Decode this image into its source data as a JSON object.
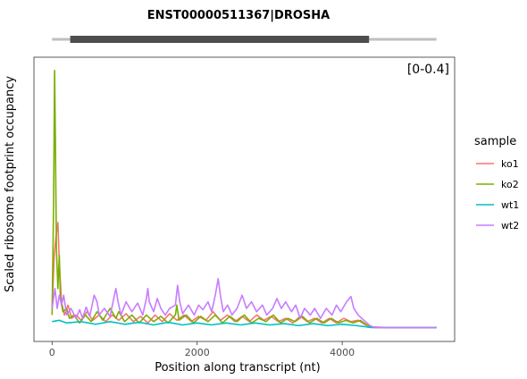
{
  "chart_data": {
    "type": "line",
    "title": "ENST00000511367|DROSHA",
    "xlabel": "Position along transcript (nt)",
    "ylabel": "Scaled ribosome footprint occupancy",
    "range_label": "[0-0.4]",
    "xlim": [
      -250,
      5550
    ],
    "ylim": [
      -0.02,
      0.41
    ],
    "x_ticks": [
      0,
      2000,
      4000
    ],
    "x_tick_labels": [
      "0",
      "2000",
      "4000"
    ],
    "grid": false,
    "legend_position": "right",
    "legend_title": "sample",
    "transcript": {
      "length": 5300,
      "cds_start": 250,
      "cds_end": 4370,
      "utr_color": "#bfbfbf",
      "cds_color": "#4d4d4d"
    },
    "series": [
      {
        "name": "ko1",
        "color": "#f8766d",
        "points": [
          [
            0,
            0.03
          ],
          [
            30,
            0.11
          ],
          [
            55,
            0.14
          ],
          [
            80,
            0.16
          ],
          [
            100,
            0.1
          ],
          [
            130,
            0.04
          ],
          [
            170,
            0.02
          ],
          [
            220,
            0.035
          ],
          [
            270,
            0.015
          ],
          [
            330,
            0.02
          ],
          [
            400,
            0.012
          ],
          [
            480,
            0.025
          ],
          [
            560,
            0.012
          ],
          [
            650,
            0.02
          ],
          [
            740,
            0.01
          ],
          [
            830,
            0.02
          ],
          [
            920,
            0.012
          ],
          [
            1020,
            0.022
          ],
          [
            1120,
            0.01
          ],
          [
            1220,
            0.018
          ],
          [
            1320,
            0.008
          ],
          [
            1420,
            0.02
          ],
          [
            1520,
            0.01
          ],
          [
            1620,
            0.022
          ],
          [
            1720,
            0.012
          ],
          [
            1820,
            0.02
          ],
          [
            1920,
            0.01
          ],
          [
            2020,
            0.018
          ],
          [
            2120,
            0.012
          ],
          [
            2220,
            0.025
          ],
          [
            2320,
            0.012
          ],
          [
            2420,
            0.02
          ],
          [
            2520,
            0.01
          ],
          [
            2620,
            0.018
          ],
          [
            2720,
            0.01
          ],
          [
            2820,
            0.02
          ],
          [
            2920,
            0.012
          ],
          [
            3020,
            0.018
          ],
          [
            3120,
            0.01
          ],
          [
            3220,
            0.015
          ],
          [
            3320,
            0.008
          ],
          [
            3420,
            0.018
          ],
          [
            3520,
            0.01
          ],
          [
            3620,
            0.015
          ],
          [
            3720,
            0.008
          ],
          [
            3820,
            0.015
          ],
          [
            3920,
            0.008
          ],
          [
            4020,
            0.015
          ],
          [
            4120,
            0.01
          ],
          [
            4220,
            0.012
          ],
          [
            4320,
            0.005
          ],
          [
            4420,
            0.002
          ],
          [
            4600,
            0.001
          ],
          [
            5300,
            0.001
          ]
        ]
      },
      {
        "name": "ko2",
        "color": "#7cae00",
        "points": [
          [
            0,
            0.02
          ],
          [
            20,
            0.18
          ],
          [
            35,
            0.39
          ],
          [
            45,
            0.29
          ],
          [
            60,
            0.12
          ],
          [
            80,
            0.06
          ],
          [
            100,
            0.11
          ],
          [
            115,
            0.045
          ],
          [
            150,
            0.025
          ],
          [
            200,
            0.03
          ],
          [
            240,
            0.015
          ],
          [
            300,
            0.02
          ],
          [
            380,
            0.008
          ],
          [
            460,
            0.02
          ],
          [
            540,
            0.01
          ],
          [
            620,
            0.025
          ],
          [
            700,
            0.012
          ],
          [
            800,
            0.03
          ],
          [
            880,
            0.015
          ],
          [
            920,
            0.025
          ],
          [
            1000,
            0.01
          ],
          [
            1100,
            0.02
          ],
          [
            1200,
            0.008
          ],
          [
            1300,
            0.02
          ],
          [
            1400,
            0.01
          ],
          [
            1500,
            0.018
          ],
          [
            1600,
            0.008
          ],
          [
            1700,
            0.02
          ],
          [
            1720,
            0.035
          ],
          [
            1750,
            0.012
          ],
          [
            1850,
            0.02
          ],
          [
            1950,
            0.008
          ],
          [
            2050,
            0.018
          ],
          [
            2150,
            0.01
          ],
          [
            2250,
            0.02
          ],
          [
            2350,
            0.008
          ],
          [
            2450,
            0.018
          ],
          [
            2550,
            0.01
          ],
          [
            2650,
            0.02
          ],
          [
            2750,
            0.008
          ],
          [
            2850,
            0.015
          ],
          [
            2950,
            0.01
          ],
          [
            3050,
            0.02
          ],
          [
            3150,
            0.008
          ],
          [
            3250,
            0.015
          ],
          [
            3350,
            0.01
          ],
          [
            3450,
            0.018
          ],
          [
            3550,
            0.008
          ],
          [
            3650,
            0.015
          ],
          [
            3750,
            0.008
          ],
          [
            3850,
            0.015
          ],
          [
            3950,
            0.008
          ],
          [
            4050,
            0.012
          ],
          [
            4150,
            0.008
          ],
          [
            4250,
            0.012
          ],
          [
            4350,
            0.004
          ],
          [
            4450,
            0.001
          ],
          [
            5300,
            0.001
          ]
        ]
      },
      {
        "name": "wt1",
        "color": "#00bfc4",
        "points": [
          [
            0,
            0.01
          ],
          [
            100,
            0.012
          ],
          [
            200,
            0.008
          ],
          [
            400,
            0.01
          ],
          [
            600,
            0.006
          ],
          [
            800,
            0.01
          ],
          [
            1000,
            0.006
          ],
          [
            1200,
            0.009
          ],
          [
            1400,
            0.005
          ],
          [
            1600,
            0.009
          ],
          [
            1800,
            0.005
          ],
          [
            2000,
            0.008
          ],
          [
            2200,
            0.005
          ],
          [
            2400,
            0.008
          ],
          [
            2600,
            0.005
          ],
          [
            2800,
            0.008
          ],
          [
            3000,
            0.005
          ],
          [
            3200,
            0.007
          ],
          [
            3400,
            0.004
          ],
          [
            3600,
            0.007
          ],
          [
            3800,
            0.004
          ],
          [
            4000,
            0.006
          ],
          [
            4200,
            0.004
          ],
          [
            4400,
            0.001
          ],
          [
            5300,
            0.001
          ]
        ]
      },
      {
        "name": "wt2",
        "color": "#c77cff",
        "points": [
          [
            0,
            0.03
          ],
          [
            40,
            0.06
          ],
          [
            70,
            0.03
          ],
          [
            100,
            0.05
          ],
          [
            130,
            0.035
          ],
          [
            160,
            0.05
          ],
          [
            200,
            0.02
          ],
          [
            260,
            0.03
          ],
          [
            330,
            0.015
          ],
          [
            380,
            0.028
          ],
          [
            420,
            0.015
          ],
          [
            470,
            0.032
          ],
          [
            520,
            0.018
          ],
          [
            580,
            0.05
          ],
          [
            620,
            0.04
          ],
          [
            650,
            0.02
          ],
          [
            720,
            0.03
          ],
          [
            800,
            0.018
          ],
          [
            850,
            0.045
          ],
          [
            880,
            0.06
          ],
          [
            910,
            0.04
          ],
          [
            950,
            0.02
          ],
          [
            1020,
            0.04
          ],
          [
            1100,
            0.025
          ],
          [
            1180,
            0.038
          ],
          [
            1250,
            0.02
          ],
          [
            1300,
            0.045
          ],
          [
            1320,
            0.06
          ],
          [
            1340,
            0.04
          ],
          [
            1400,
            0.025
          ],
          [
            1450,
            0.045
          ],
          [
            1500,
            0.03
          ],
          [
            1560,
            0.02
          ],
          [
            1620,
            0.03
          ],
          [
            1700,
            0.035
          ],
          [
            1730,
            0.065
          ],
          [
            1760,
            0.04
          ],
          [
            1800,
            0.022
          ],
          [
            1880,
            0.035
          ],
          [
            1960,
            0.02
          ],
          [
            2020,
            0.035
          ],
          [
            2080,
            0.028
          ],
          [
            2150,
            0.04
          ],
          [
            2200,
            0.025
          ],
          [
            2250,
            0.05
          ],
          [
            2290,
            0.075
          ],
          [
            2320,
            0.05
          ],
          [
            2360,
            0.025
          ],
          [
            2420,
            0.035
          ],
          [
            2480,
            0.02
          ],
          [
            2550,
            0.03
          ],
          [
            2620,
            0.05
          ],
          [
            2680,
            0.03
          ],
          [
            2750,
            0.04
          ],
          [
            2820,
            0.025
          ],
          [
            2900,
            0.035
          ],
          [
            2960,
            0.02
          ],
          [
            3040,
            0.03
          ],
          [
            3100,
            0.045
          ],
          [
            3160,
            0.03
          ],
          [
            3220,
            0.04
          ],
          [
            3300,
            0.025
          ],
          [
            3360,
            0.035
          ],
          [
            3420,
            0.015
          ],
          [
            3480,
            0.03
          ],
          [
            3560,
            0.02
          ],
          [
            3620,
            0.03
          ],
          [
            3700,
            0.015
          ],
          [
            3780,
            0.03
          ],
          [
            3860,
            0.02
          ],
          [
            3920,
            0.035
          ],
          [
            3980,
            0.025
          ],
          [
            4060,
            0.04
          ],
          [
            4120,
            0.048
          ],
          [
            4160,
            0.03
          ],
          [
            4220,
            0.02
          ],
          [
            4300,
            0.012
          ],
          [
            4380,
            0.004
          ],
          [
            4450,
            0.001
          ],
          [
            5300,
            0.001
          ]
        ]
      }
    ]
  }
}
